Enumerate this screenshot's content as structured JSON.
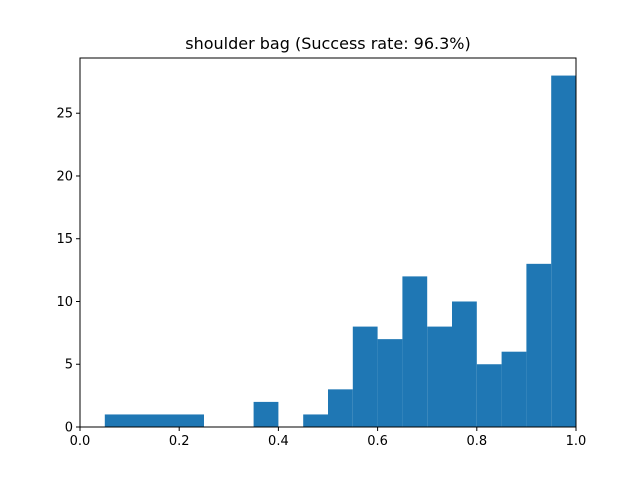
{
  "chart_data": {
    "type": "bar",
    "title": "shoulder bag (Success rate: 96.3%)",
    "xlabel": "",
    "ylabel": "",
    "xlim": [
      0.0,
      1.0
    ],
    "ylim": [
      0,
      29.4
    ],
    "bar_color": "#1f77b4",
    "bins": [
      {
        "x0": 0.05,
        "x1": 0.25,
        "value": 1
      },
      {
        "x0": 0.35,
        "x1": 0.4,
        "value": 2
      },
      {
        "x0": 0.45,
        "x1": 0.5,
        "value": 1
      },
      {
        "x0": 0.5,
        "x1": 0.55,
        "value": 3
      },
      {
        "x0": 0.55,
        "x1": 0.6,
        "value": 8
      },
      {
        "x0": 0.6,
        "x1": 0.65,
        "value": 7
      },
      {
        "x0": 0.65,
        "x1": 0.7,
        "value": 12
      },
      {
        "x0": 0.7,
        "x1": 0.75,
        "value": 8
      },
      {
        "x0": 0.75,
        "x1": 0.8,
        "value": 10
      },
      {
        "x0": 0.8,
        "x1": 0.85,
        "value": 5
      },
      {
        "x0": 0.85,
        "x1": 0.9,
        "value": 6
      },
      {
        "x0": 0.9,
        "x1": 0.95,
        "value": 13
      },
      {
        "x0": 0.95,
        "x1": 1.0,
        "value": 28
      }
    ],
    "x_ticks": [
      {
        "value": 0.0,
        "label": "0.0"
      },
      {
        "value": 0.2,
        "label": "0.2"
      },
      {
        "value": 0.4,
        "label": "0.4"
      },
      {
        "value": 0.6,
        "label": "0.6"
      },
      {
        "value": 0.8,
        "label": "0.8"
      },
      {
        "value": 1.0,
        "label": "1.0"
      }
    ],
    "y_ticks": [
      {
        "value": 0,
        "label": "0"
      },
      {
        "value": 5,
        "label": "5"
      },
      {
        "value": 10,
        "label": "10"
      },
      {
        "value": 15,
        "label": "15"
      },
      {
        "value": 20,
        "label": "20"
      },
      {
        "value": 25,
        "label": "25"
      }
    ],
    "grid": false,
    "legend": "none"
  }
}
